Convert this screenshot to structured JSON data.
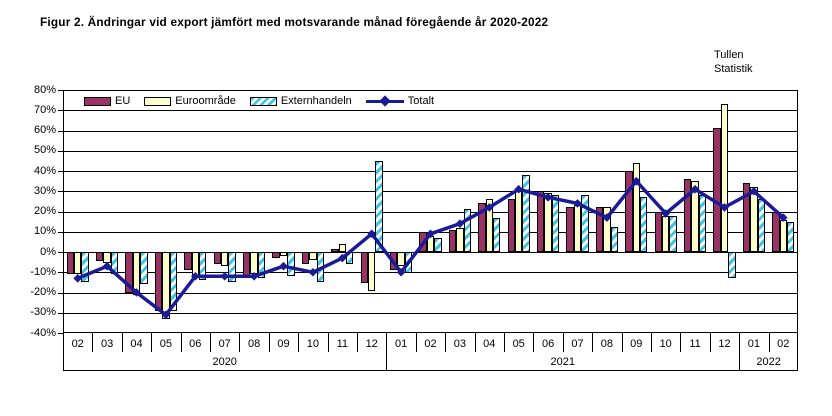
{
  "title": "Figur 2. Ändringar vid export jämfört med motsvarande månad föregående år 2020-2022",
  "watermark": {
    "line1": "Tullen",
    "line2": "Statistik"
  },
  "legend": [
    {
      "label": "EU",
      "type": "box",
      "color": "#993366"
    },
    {
      "label": "Euroområde",
      "type": "box",
      "color": "#FFFFCC"
    },
    {
      "label": "Externhandeln",
      "type": "hatch",
      "color": "#38C5E8"
    },
    {
      "label": "Totalt",
      "type": "line",
      "color": "#1B1B96"
    }
  ],
  "colors": {
    "eu": "#993366",
    "euro": "#FFFFCC",
    "extern_stripe": "#38C5E8",
    "extern_bg": "#FFFFFF",
    "line": "#1B1B96",
    "axis": "#000000"
  },
  "chart_data": {
    "type": "bar+line",
    "title": "Figur 2. Ändringar vid export jämfört med motsvarande månad föregående år 2020-2022",
    "xlabel": "",
    "ylabel": "",
    "ylim": [
      -40,
      80
    ],
    "y_tick_step": 10,
    "y_tick_labels": [
      "80%",
      "70%",
      "60%",
      "50%",
      "40%",
      "30%",
      "20%",
      "10%",
      "0%",
      "-10%",
      "-20%",
      "-30%",
      "-40%"
    ],
    "grid": true,
    "legend_position": "top-left-inside",
    "categories": [
      "02",
      "03",
      "04",
      "05",
      "06",
      "07",
      "08",
      "09",
      "10",
      "11",
      "12",
      "01",
      "02",
      "03",
      "04",
      "05",
      "06",
      "07",
      "08",
      "09",
      "10",
      "11",
      "12",
      "01",
      "02"
    ],
    "year_groups": [
      {
        "label": "2020",
        "count": 11
      },
      {
        "label": "2021",
        "count": 12
      },
      {
        "label": "2022",
        "count": 2
      }
    ],
    "series": [
      {
        "name": "EU",
        "type": "bar",
        "values": [
          -11,
          -4.5,
          -20,
          -29,
          -9,
          -6,
          -12,
          -3,
          -6,
          1.5,
          -15.5,
          -9,
          10,
          11,
          24,
          26,
          30,
          22,
          22,
          40,
          20,
          36,
          61,
          34,
          20
        ]
      },
      {
        "name": "Euroområde",
        "type": "bar",
        "values": [
          -11,
          -5.5,
          -21,
          -33,
          -12,
          -7,
          -11,
          -2,
          -4,
          4,
          -19.5,
          -7,
          8,
          12,
          26,
          30,
          29,
          23,
          22,
          44,
          18,
          35,
          73,
          32,
          16
        ]
      },
      {
        "name": "Externhandeln",
        "type": "bar",
        "values": [
          -15,
          -11,
          -16,
          -29,
          -14,
          -15,
          -13,
          -12,
          -15,
          -6,
          45,
          -10.5,
          7,
          21,
          17,
          38,
          28,
          28,
          12.5,
          27,
          18,
          28,
          -13,
          26,
          15
        ]
      },
      {
        "name": "Totalt",
        "type": "line",
        "values": [
          -13,
          -7,
          -20,
          -31,
          -12,
          -12,
          -12,
          -7,
          -10,
          -3,
          9,
          -10,
          9,
          14,
          22,
          31,
          27,
          24,
          17,
          35,
          19,
          31,
          22,
          30,
          17
        ]
      }
    ]
  }
}
